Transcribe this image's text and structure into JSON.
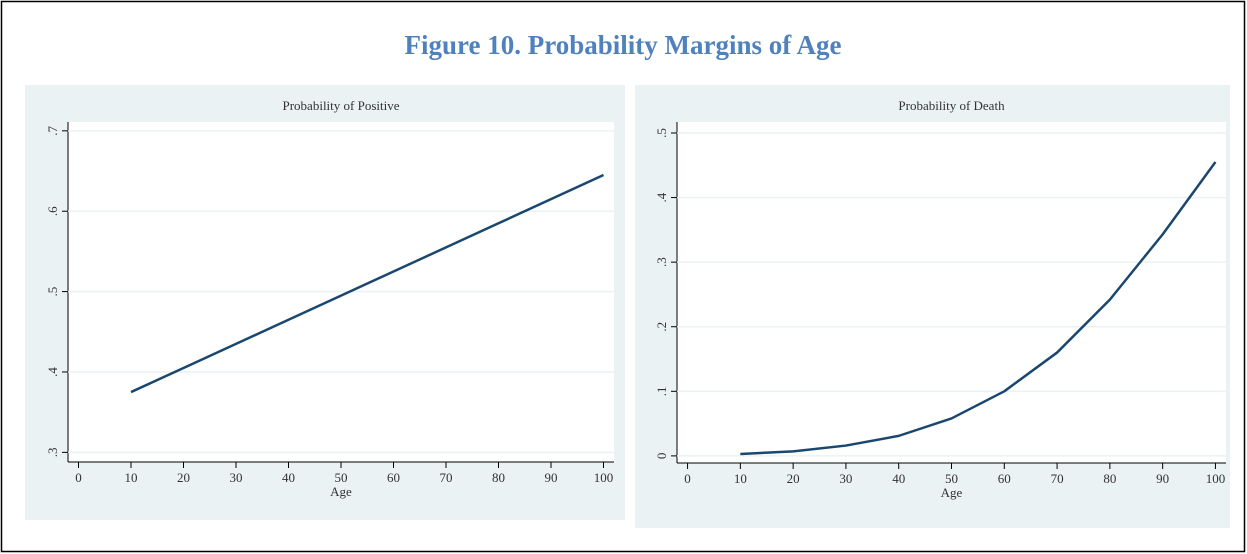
{
  "title": "Figure 10. Probability Margins of Age",
  "chart_data": [
    {
      "type": "line",
      "title": "Probability of Positive",
      "x_label": "Age",
      "x": [
        10,
        20,
        30,
        40,
        50,
        60,
        70,
        80,
        90,
        100
      ],
      "values": [
        0.375,
        0.405,
        0.435,
        0.465,
        0.495,
        0.525,
        0.555,
        0.585,
        0.615,
        0.645
      ],
      "color": "#1a476f",
      "xlim": [
        -2,
        102
      ],
      "xticks": [
        0,
        10,
        20,
        30,
        40,
        50,
        60,
        70,
        80,
        90,
        100
      ],
      "ylim": [
        0.288,
        0.711
      ],
      "yticks": [
        {
          "value": 0.3,
          "label": ".3"
        },
        {
          "value": 0.4,
          "label": ".4"
        },
        {
          "value": 0.5,
          "label": ".5"
        },
        {
          "value": 0.6,
          "label": ".6"
        },
        {
          "value": 0.7,
          "label": ".7"
        }
      ],
      "grid": true
    },
    {
      "type": "line",
      "title": "Probability of Death",
      "x_label": "Age",
      "x": [
        10,
        20,
        30,
        40,
        50,
        60,
        70,
        80,
        90,
        100
      ],
      "values": [
        0.003,
        0.007,
        0.016,
        0.031,
        0.058,
        0.1,
        0.16,
        0.242,
        0.343,
        0.455
      ],
      "color": "#1a476f",
      "xlim": [
        -2,
        102
      ],
      "xticks": [
        0,
        10,
        20,
        30,
        40,
        50,
        60,
        70,
        80,
        90,
        100
      ],
      "ylim": [
        -0.011,
        0.517
      ],
      "yticks": [
        0,
        {
          "value": 0.1,
          "label": ".1"
        },
        {
          "value": 0.2,
          "label": ".2"
        },
        {
          "value": 0.3,
          "label": ".3"
        },
        {
          "value": 0.4,
          "label": ".4"
        },
        {
          "value": 0.5,
          "label": ".5"
        }
      ],
      "grid": true
    }
  ]
}
